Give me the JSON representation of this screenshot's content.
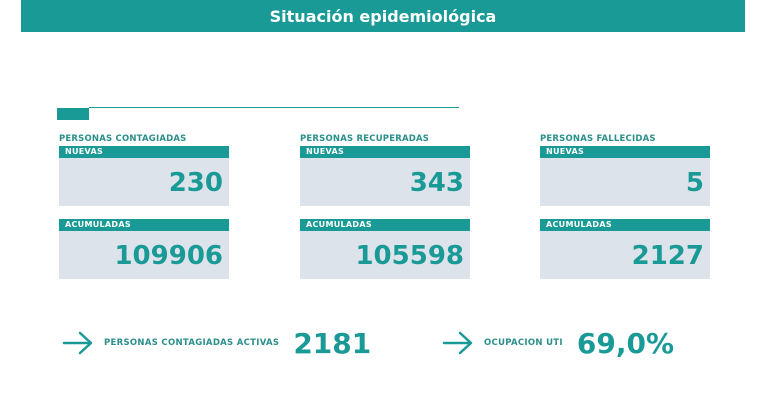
{
  "header": {
    "title": "Situación epidemiológica"
  },
  "columns": [
    {
      "title": "PERSONAS CONTAGIADAS",
      "new_label": "NUEVAS",
      "new_value": "230",
      "acc_label": "ACUMULADAS",
      "acc_value": "109906"
    },
    {
      "title": "PERSONAS RECUPERADAS",
      "new_label": "NUEVAS",
      "new_value": "343",
      "acc_label": "ACUMULADAS",
      "acc_value": "105598"
    },
    {
      "title": "PERSONAS FALLECIDAS",
      "new_label": "NUEVAS",
      "new_value": "5",
      "acc_label": "ACUMULADAS",
      "acc_value": "2127"
    }
  ],
  "bottom": {
    "active": {
      "label": "PERSONAS CONTAGIADAS ACTIVAS",
      "value": "2181"
    },
    "icu": {
      "label": "OCUPACION UTI",
      "value": "69,0%"
    }
  },
  "colors": {
    "accent": "#1a9a96",
    "box_bg": "#dde3ea",
    "label_text": "#2a8f8b"
  },
  "icons": {
    "bullet": "arrow-right-icon"
  }
}
